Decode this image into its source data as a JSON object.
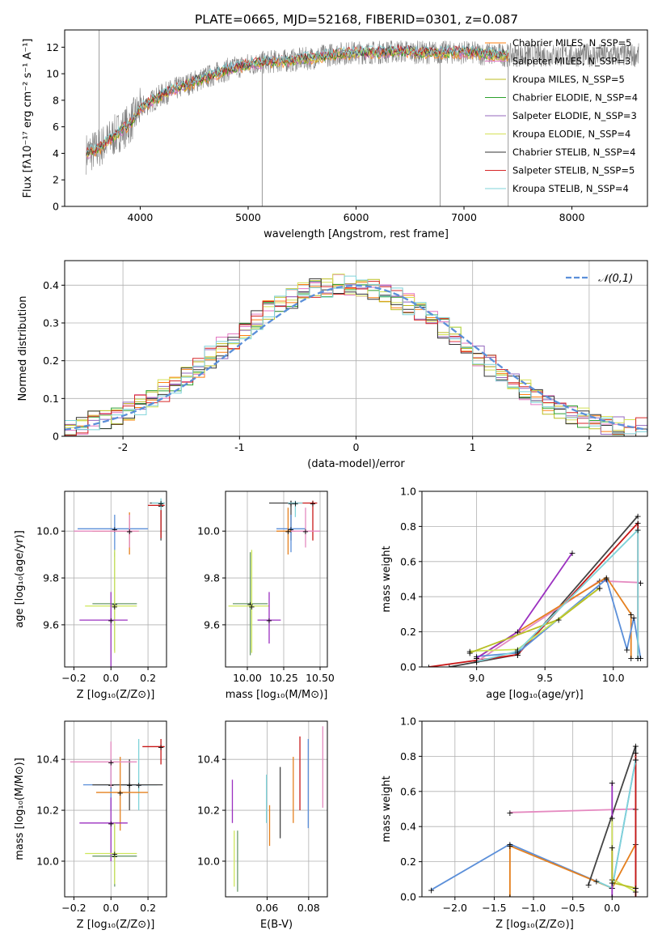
{
  "figure_title": "PLATE=0665, MJD=52168, FIBERID=0301, z=0.087",
  "colors": {
    "models": [
      "#ff7f0e",
      "#e377c2",
      "#bcbd22",
      "#2ca02c",
      "#9467bd",
      "#d4e157",
      "#333333",
      "#d62728",
      "#7fd3d9"
    ],
    "spectrum_data": "#808080",
    "gaussian": "#5b8fd9",
    "c_blue": "#5b8fd9",
    "c_orange": "#e5801f",
    "c_pink": "#e58ac0",
    "c_purple": "#9b30c0",
    "c_olive": "#b8bf26",
    "c_lime": "#cde65a",
    "c_dark": "#444444",
    "c_red": "#c81818",
    "c_cyan": "#7fd3d9",
    "c_green": "#6a9a6a"
  },
  "chart_data": [
    {
      "id": "spectrum",
      "type": "line",
      "xlabel": "wavelength [Angstrom, rest frame]",
      "ylabel": "Flux [fλ10⁻¹⁷ erg cm⁻² s⁻¹ A⁻¹]",
      "xlim": [
        3300,
        8700
      ],
      "ylim": [
        0,
        13.3
      ],
      "xticks": [
        4000,
        5000,
        6000,
        7000,
        8000
      ],
      "yticks": [
        0,
        2,
        4,
        6,
        8,
        10,
        12
      ],
      "grid": false,
      "legend_position": "top-right",
      "continuum_x": [
        3500,
        3600,
        3700,
        3800,
        3900,
        4000,
        4100,
        4200,
        4400,
        4600,
        4800,
        5000,
        5200,
        5400,
        5600,
        5800,
        6000,
        6200,
        6400,
        6600,
        6800,
        7000,
        7200,
        7400
      ],
      "continuum_y": [
        4.0,
        4.3,
        4.9,
        5.6,
        6.2,
        7.4,
        7.9,
        8.4,
        9.1,
        9.7,
        10.3,
        10.7,
        10.9,
        11.0,
        11.2,
        11.5,
        11.6,
        11.6,
        11.7,
        11.6,
        11.6,
        11.6,
        11.5,
        11.4
      ],
      "spikes": [
        {
          "x": 5130,
          "y": 0.0
        },
        {
          "x": 6780,
          "y": 0.0
        },
        {
          "x": 7410,
          "y": 0.0
        },
        {
          "x": 3620,
          "y": 13.3
        }
      ],
      "legend": [
        "Chabrier MILES, N_SSP=5",
        "Salpeter MILES, N_SSP=3",
        "Kroupa MILES, N_SSP=5",
        "Chabrier ELODIE, N_SSP=4",
        "Salpeter ELODIE, N_SSP=3",
        "Kroupa ELODIE, N_SSP=4",
        "Chabrier STELIB, N_SSP=4",
        "Salpeter STELIB, N_SSP=5",
        "Kroupa STELIB, N_SSP=4"
      ]
    },
    {
      "id": "residual_hist",
      "type": "line",
      "xlabel": "(data-model)/error",
      "ylabel": "Normed distribution",
      "xlim": [
        -2.5,
        2.5
      ],
      "ylim": [
        0,
        0.465
      ],
      "xticks": [
        -2,
        -1,
        0,
        1,
        2
      ],
      "yticks": [
        0.0,
        0.1,
        0.2,
        0.3,
        0.4
      ],
      "grid": true,
      "legend_position": "top-right",
      "legend": [
        "N(0,1)"
      ],
      "bin_width": 0.1,
      "base_values": [
        0.025,
        0.03,
        0.04,
        0.05,
        0.06,
        0.072,
        0.085,
        0.1,
        0.12,
        0.14,
        0.16,
        0.185,
        0.21,
        0.235,
        0.26,
        0.285,
        0.31,
        0.33,
        0.35,
        0.365,
        0.38,
        0.39,
        0.395,
        0.4,
        0.4,
        0.395,
        0.39,
        0.38,
        0.365,
        0.35,
        0.33,
        0.31,
        0.285,
        0.26,
        0.235,
        0.21,
        0.185,
        0.16,
        0.14,
        0.12,
        0.1,
        0.085,
        0.072,
        0.06,
        0.05,
        0.04,
        0.03,
        0.025,
        0.02,
        0.02
      ]
    },
    {
      "id": "age_vs_Z",
      "type": "scatter",
      "xlabel": "Z [log₁₀(Z/Z⊙)]",
      "ylabel": "age  [log₁₀(age/yr)]",
      "xlim": [
        -0.25,
        0.3
      ],
      "ylim": [
        9.42,
        10.17
      ],
      "xticks": [
        -0.2,
        0.0,
        0.2
      ],
      "xticklabels": [
        "−0.2",
        "0.0",
        "0.2"
      ],
      "yticks": [
        9.6,
        9.8,
        10.0
      ],
      "yticklabels": [
        "9.6",
        "9.8",
        "10.0"
      ],
      "grid": true,
      "points": [
        {
          "x": 0.27,
          "y": 10.12,
          "xerr": [
            0.06,
            0.02
          ],
          "yerr": [
            0.16,
            0.01
          ],
          "c": "c_dark"
        },
        {
          "x": 0.27,
          "y": 10.11,
          "xerr": [
            0.07,
            0.02
          ],
          "yerr": [
            0.14,
            0.02
          ],
          "c": "c_red"
        },
        {
          "x": 0.27,
          "y": 10.12,
          "xerr": [
            0.05,
            0.02
          ],
          "yerr": [
            0.03,
            0.02
          ],
          "c": "c_cyan"
        },
        {
          "x": 0.02,
          "y": 10.01,
          "xerr": [
            0.2,
            0.18
          ],
          "yerr": [
            0.12,
            0.06
          ],
          "c": "c_blue"
        },
        {
          "x": 0.1,
          "y": 10.0,
          "xerr": [
            0.2,
            0.05
          ],
          "yerr": [
            0.1,
            0.08
          ],
          "c": "c_orange"
        },
        {
          "x": 0.1,
          "y": 10.0,
          "xerr": [
            0.3,
            0.05
          ],
          "yerr": [
            0.07,
            0.07
          ],
          "c": "c_pink"
        },
        {
          "x": 0.02,
          "y": 9.69,
          "xerr": [
            0.12,
            0.12
          ],
          "yerr": [
            0.2,
            0.22
          ],
          "c": "c_green"
        },
        {
          "x": 0.02,
          "y": 9.68,
          "xerr": [
            0.16,
            0.12
          ],
          "yerr": [
            0.2,
            0.24
          ],
          "c": "c_lime"
        },
        {
          "x": 0.0,
          "y": 9.62,
          "xerr": [
            0.17,
            0.09
          ],
          "yerr": [
            0.28,
            0.12
          ],
          "c": "c_purple"
        }
      ]
    },
    {
      "id": "age_vs_mass",
      "type": "scatter",
      "xlabel": "mass [log₁₀(M/M⊙)]",
      "ylabel": "",
      "xlim": [
        9.85,
        10.55
      ],
      "ylim": [
        9.42,
        10.17
      ],
      "xticks": [
        10.0,
        10.25,
        10.5
      ],
      "xticklabels": [
        "10.00",
        "10.25",
        "10.50"
      ],
      "yticks": [
        9.6,
        9.8,
        10.0
      ],
      "yticklabels": [
        "9.6",
        "9.8",
        "10.0"
      ],
      "grid": true,
      "points": [
        {
          "x": 10.3,
          "y": 10.12,
          "xerr": [
            0.15,
            0.05
          ],
          "yerr": [
            0.16,
            0.01
          ],
          "c": "c_dark"
        },
        {
          "x": 10.45,
          "y": 10.12,
          "xerr": [
            0.15,
            0.03
          ],
          "yerr": [
            0.16,
            0.01
          ],
          "c": "c_red"
        },
        {
          "x": 10.33,
          "y": 10.12,
          "xerr": [
            0.05,
            0.05
          ],
          "yerr": [
            0.06,
            0.01
          ],
          "c": "c_cyan"
        },
        {
          "x": 10.3,
          "y": 10.01,
          "xerr": [
            0.1,
            0.1
          ],
          "yerr": [
            0.1,
            0.06
          ],
          "c": "c_blue"
        },
        {
          "x": 10.28,
          "y": 10.0,
          "xerr": [
            0.08,
            0.05
          ],
          "yerr": [
            0.1,
            0.1
          ],
          "c": "c_orange"
        },
        {
          "x": 10.4,
          "y": 10.0,
          "xerr": [
            0.1,
            0.1
          ],
          "yerr": [
            0.07,
            0.1
          ],
          "c": "c_pink"
        },
        {
          "x": 10.02,
          "y": 9.69,
          "xerr": [
            0.12,
            0.12
          ],
          "yerr": [
            0.22,
            0.22
          ],
          "c": "c_green"
        },
        {
          "x": 10.03,
          "y": 9.68,
          "xerr": [
            0.16,
            0.12
          ],
          "yerr": [
            0.2,
            0.24
          ],
          "c": "c_lime"
        },
        {
          "x": 10.15,
          "y": 9.62,
          "xerr": [
            0.08,
            0.08
          ],
          "yerr": [
            0.1,
            0.12
          ],
          "c": "c_purple"
        }
      ]
    },
    {
      "id": "weight_vs_age",
      "type": "line",
      "xlabel": "age  [log₁₀(age/yr)]",
      "ylabel": "mass weight",
      "xlim": [
        8.6,
        10.25
      ],
      "ylim": [
        0,
        1.0
      ],
      "xticks": [
        9.0,
        9.5,
        10.0
      ],
      "xticklabels": [
        "9.0",
        "9.5",
        "10.0"
      ],
      "yticks": [
        0.0,
        0.2,
        0.4,
        0.6,
        0.8,
        1.0
      ],
      "yticklabels": [
        "0.0",
        "0.2",
        "0.4",
        "0.6",
        "0.8",
        "1.0"
      ],
      "grid": true,
      "series": [
        {
          "c": "c_dark",
          "x": [
            8.8,
            9.3,
            10.18
          ],
          "y": [
            0.0,
            0.07,
            0.86
          ]
        },
        {
          "c": "c_red",
          "x": [
            8.65,
            9.3,
            10.18,
            10.18
          ],
          "y": [
            0.0,
            0.07,
            0.82,
            0.05
          ]
        },
        {
          "c": "c_pink",
          "x": [
            9.0,
            9.9,
            10.2
          ],
          "y": [
            0.03,
            0.49,
            0.48
          ]
        },
        {
          "c": "c_orange",
          "x": [
            9.0,
            9.3,
            9.95,
            10.13,
            10.13
          ],
          "y": [
            0.05,
            0.2,
            0.51,
            0.3,
            0.05
          ]
        },
        {
          "c": "c_blue",
          "x": [
            9.0,
            9.3,
            9.95,
            10.1,
            10.15,
            10.2
          ],
          "y": [
            0.06,
            0.08,
            0.5,
            0.1,
            0.28,
            0.05
          ]
        },
        {
          "c": "c_purple",
          "x": [
            9.0,
            9.3,
            9.7
          ],
          "y": [
            0.05,
            0.2,
            0.65
          ]
        },
        {
          "c": "c_lime",
          "x": [
            8.95,
            9.3,
            9.9
          ],
          "y": [
            0.09,
            0.1,
            0.45
          ]
        },
        {
          "c": "c_olive",
          "x": [
            8.95,
            9.6,
            9.9
          ],
          "y": [
            0.08,
            0.27,
            0.45
          ]
        },
        {
          "c": "c_cyan",
          "x": [
            9.0,
            9.3,
            10.18,
            10.18
          ],
          "y": [
            0.03,
            0.09,
            0.78,
            0.05
          ]
        }
      ]
    },
    {
      "id": "mass_vs_Z",
      "type": "scatter",
      "xlabel": "Z [log₁₀(Z/Z⊙)]",
      "ylabel": "mass [log₁₀(M/M⊙)]",
      "xlim": [
        -0.25,
        0.3
      ],
      "ylim": [
        9.86,
        10.55
      ],
      "xticks": [
        -0.2,
        0.0,
        0.2
      ],
      "xticklabels": [
        "−0.2",
        "0.0",
        "0.2"
      ],
      "yticks": [
        10.0,
        10.2,
        10.4
      ],
      "yticklabels": [
        "10.0",
        "10.2",
        "10.4"
      ],
      "grid": true,
      "points": [
        {
          "x": 0.27,
          "y": 10.45,
          "xerr": [
            0.1,
            0.02
          ],
          "yerr": [
            0.07,
            0.03
          ],
          "c": "c_red"
        },
        {
          "x": 0.15,
          "y": 10.3,
          "xerr": [
            0.1,
            0.1
          ],
          "yerr": [
            0.1,
            0.18
          ],
          "c": "c_cyan"
        },
        {
          "x": 0.0,
          "y": 10.3,
          "xerr": [
            0.15,
            0.2
          ],
          "yerr": [
            0.1,
            0.1
          ],
          "c": "c_blue"
        },
        {
          "x": 0.1,
          "y": 10.3,
          "xerr": [
            0.2,
            0.18
          ],
          "yerr": [
            0.1,
            0.1
          ],
          "c": "c_dark"
        },
        {
          "x": 0.05,
          "y": 10.27,
          "xerr": [
            0.13,
            0.15
          ],
          "yerr": [
            0.15,
            0.14
          ],
          "c": "c_orange"
        },
        {
          "x": 0.0,
          "y": 10.39,
          "xerr": [
            0.22,
            0.14
          ],
          "yerr": [
            0.1,
            0.08
          ],
          "c": "c_pink"
        },
        {
          "x": 0.0,
          "y": 10.15,
          "xerr": [
            0.17,
            0.09
          ],
          "yerr": [
            0.15,
            0.1
          ],
          "c": "c_purple"
        },
        {
          "x": 0.02,
          "y": 10.02,
          "xerr": [
            0.12,
            0.12
          ],
          "yerr": [
            0.12,
            0.12
          ],
          "c": "c_green"
        },
        {
          "x": 0.02,
          "y": 10.03,
          "xerr": [
            0.16,
            0.12
          ],
          "yerr": [
            0.12,
            0.12
          ],
          "c": "c_lime"
        }
      ]
    },
    {
      "id": "mass_vs_EBV",
      "type": "scatter",
      "xlabel": "E(B-V)",
      "ylabel": "",
      "xlim": [
        0.04,
        0.089
      ],
      "ylim": [
        9.86,
        10.55
      ],
      "xticks": [
        0.06,
        0.08
      ],
      "xticklabels": [
        "0.06",
        "0.08"
      ],
      "yticks": [
        10.0,
        10.2,
        10.4
      ],
      "yticklabels": [
        "10.0",
        "10.2",
        "10.4"
      ],
      "grid": true,
      "vlines": [
        {
          "x": 0.0433,
          "y0": 10.15,
          "y1": 10.32,
          "c": "c_purple"
        },
        {
          "x": 0.0442,
          "y0": 9.9,
          "y1": 10.12,
          "c": "c_lime"
        },
        {
          "x": 0.0458,
          "y0": 9.88,
          "y1": 10.12,
          "c": "c_green"
        },
        {
          "x": 0.0597,
          "y0": 10.15,
          "y1": 10.34,
          "c": "c_cyan"
        },
        {
          "x": 0.0612,
          "y0": 10.06,
          "y1": 10.22,
          "c": "c_orange"
        },
        {
          "x": 0.0663,
          "y0": 10.09,
          "y1": 10.37,
          "c": "c_dark"
        },
        {
          "x": 0.0726,
          "y0": 10.15,
          "y1": 10.41,
          "c": "c_orange"
        },
        {
          "x": 0.0758,
          "y0": 10.2,
          "y1": 10.49,
          "c": "c_red"
        },
        {
          "x": 0.0798,
          "y0": 10.13,
          "y1": 10.48,
          "c": "c_blue"
        },
        {
          "x": 0.0868,
          "y0": 10.21,
          "y1": 10.53,
          "c": "c_pink"
        }
      ]
    },
    {
      "id": "weight_vs_Z",
      "type": "line",
      "xlabel": "Z [log₁₀(Z/Z⊙)]",
      "ylabel": "mass weight",
      "xlim": [
        -2.42,
        0.45
      ],
      "ylim": [
        0,
        1.0
      ],
      "xticks": [
        -2.0,
        -1.5,
        -1.0,
        -0.5,
        0.0
      ],
      "xticklabels": [
        "−2.0",
        "−1.5",
        "−1.0",
        "−0.5",
        "0.0"
      ],
      "yticks": [
        0.0,
        0.2,
        0.4,
        0.6,
        0.8,
        1.0
      ],
      "yticklabels": [
        "0.0",
        "0.2",
        "0.4",
        "0.6",
        "0.8",
        "1.0"
      ],
      "grid": true,
      "series": [
        {
          "c": "c_pink",
          "x": [
            -1.3,
            0.3
          ],
          "y": [
            0.48,
            0.5
          ]
        },
        {
          "c": "c_blue",
          "x": [
            -2.3,
            -1.3,
            0.0,
            0.3
          ],
          "y": [
            0.04,
            0.3,
            0.05,
            0.78
          ]
        },
        {
          "c": "c_orange",
          "x": [
            -1.3,
            -1.3,
            0.0,
            0.3,
            0.3
          ],
          "y": [
            0.0,
            0.29,
            0.05,
            0.3,
            0.05
          ]
        },
        {
          "c": "c_dark",
          "x": [
            -0.3,
            0.3,
            0.3
          ],
          "y": [
            0.07,
            0.86,
            0.0
          ]
        },
        {
          "c": "c_red",
          "x": [
            0.3,
            0.3
          ],
          "y": [
            0.82,
            0.0
          ]
        },
        {
          "c": "c_cyan",
          "x": [
            -0.2,
            0.0,
            0.3
          ],
          "y": [
            0.09,
            0.05,
            0.78
          ]
        },
        {
          "c": "c_purple",
          "x": [
            0.0,
            0.0
          ],
          "y": [
            0.65,
            0.0
          ]
        },
        {
          "c": "c_lime",
          "x": [
            0.0,
            0.0,
            0.3
          ],
          "y": [
            0.45,
            0.1,
            0.03
          ]
        },
        {
          "c": "c_olive",
          "x": [
            0.0,
            0.0,
            0.3
          ],
          "y": [
            0.28,
            0.08,
            0.05
          ]
        }
      ]
    }
  ]
}
